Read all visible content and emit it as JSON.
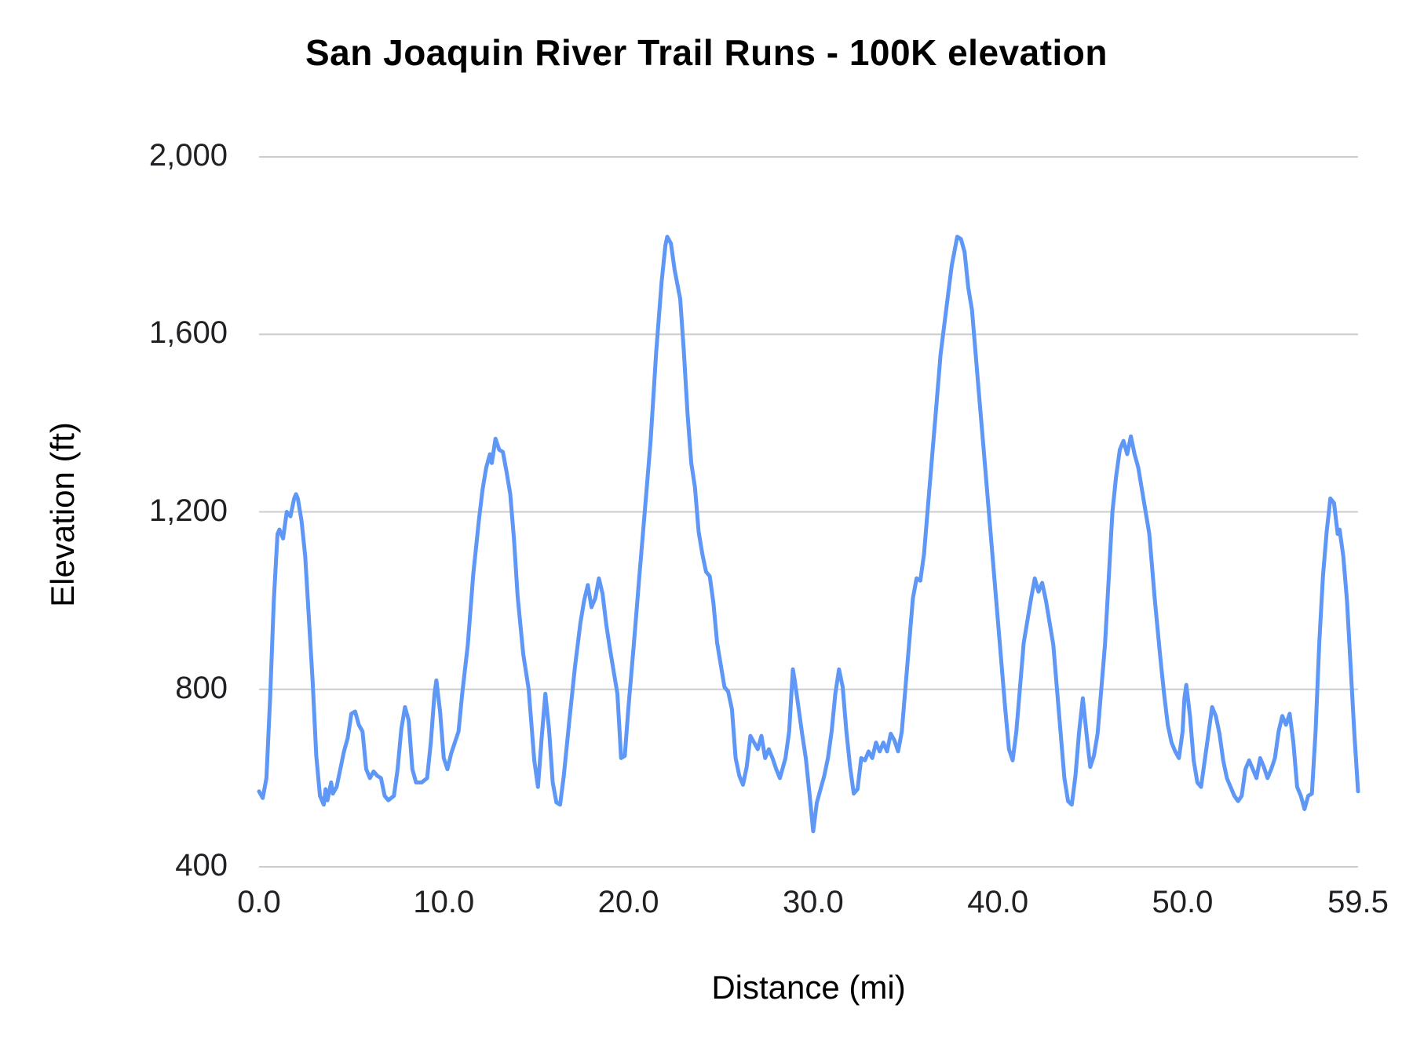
{
  "chart_data": {
    "type": "line",
    "title": "San Joaquin River Trail Runs - 100K elevation",
    "xlabel": "Distance (mi)",
    "ylabel": "Elevation (ft)",
    "xlim": [
      0,
      59.5
    ],
    "ylim": [
      400,
      2000
    ],
    "grid": true,
    "legend": "none",
    "line_color": "#5e97f6",
    "grid_color": "#cccccc",
    "x_ticks": [
      {
        "value": 0.0,
        "label": "0.0"
      },
      {
        "value": 10.0,
        "label": "10.0"
      },
      {
        "value": 20.0,
        "label": "20.0"
      },
      {
        "value": 30.0,
        "label": "30.0"
      },
      {
        "value": 40.0,
        "label": "40.0"
      },
      {
        "value": 50.0,
        "label": "50.0"
      },
      {
        "value": 59.5,
        "label": "59.5"
      }
    ],
    "y_ticks": [
      {
        "value": 400,
        "label": "400"
      },
      {
        "value": 800,
        "label": "800"
      },
      {
        "value": 1200,
        "label": "1,200"
      },
      {
        "value": 1600,
        "label": "1,600"
      },
      {
        "value": 2000,
        "label": "2,000"
      }
    ],
    "series_name": "Elevation (ft)",
    "points": [
      [
        0.0,
        570
      ],
      [
        0.2,
        555
      ],
      [
        0.4,
        600
      ],
      [
        0.6,
        780
      ],
      [
        0.8,
        1000
      ],
      [
        1.0,
        1150
      ],
      [
        1.1,
        1160
      ],
      [
        1.3,
        1140
      ],
      [
        1.5,
        1200
      ],
      [
        1.7,
        1190
      ],
      [
        1.9,
        1230
      ],
      [
        2.0,
        1240
      ],
      [
        2.1,
        1230
      ],
      [
        2.3,
        1180
      ],
      [
        2.5,
        1100
      ],
      [
        2.7,
        960
      ],
      [
        2.9,
        820
      ],
      [
        3.1,
        650
      ],
      [
        3.3,
        560
      ],
      [
        3.5,
        540
      ],
      [
        3.6,
        575
      ],
      [
        3.7,
        550
      ],
      [
        3.9,
        590
      ],
      [
        4.0,
        565
      ],
      [
        4.2,
        580
      ],
      [
        4.4,
        620
      ],
      [
        4.6,
        660
      ],
      [
        4.8,
        690
      ],
      [
        5.0,
        745
      ],
      [
        5.2,
        750
      ],
      [
        5.4,
        720
      ],
      [
        5.6,
        705
      ],
      [
        5.8,
        620
      ],
      [
        6.0,
        600
      ],
      [
        6.2,
        615
      ],
      [
        6.4,
        605
      ],
      [
        6.6,
        600
      ],
      [
        6.8,
        560
      ],
      [
        7.0,
        550
      ],
      [
        7.3,
        560
      ],
      [
        7.5,
        620
      ],
      [
        7.7,
        710
      ],
      [
        7.9,
        760
      ],
      [
        8.1,
        730
      ],
      [
        8.3,
        620
      ],
      [
        8.5,
        590
      ],
      [
        8.8,
        590
      ],
      [
        9.1,
        600
      ],
      [
        9.3,
        680
      ],
      [
        9.5,
        790
      ],
      [
        9.6,
        820
      ],
      [
        9.8,
        750
      ],
      [
        10.0,
        645
      ],
      [
        10.2,
        620
      ],
      [
        10.4,
        655
      ],
      [
        10.6,
        680
      ],
      [
        10.8,
        705
      ],
      [
        11.0,
        790
      ],
      [
        11.3,
        900
      ],
      [
        11.6,
        1060
      ],
      [
        11.9,
        1180
      ],
      [
        12.1,
        1250
      ],
      [
        12.3,
        1300
      ],
      [
        12.5,
        1330
      ],
      [
        12.6,
        1310
      ],
      [
        12.8,
        1365
      ],
      [
        13.0,
        1340
      ],
      [
        13.2,
        1335
      ],
      [
        13.4,
        1290
      ],
      [
        13.6,
        1240
      ],
      [
        13.8,
        1140
      ],
      [
        14.0,
        1010
      ],
      [
        14.3,
        880
      ],
      [
        14.6,
        800
      ],
      [
        14.9,
        640
      ],
      [
        15.1,
        580
      ],
      [
        15.3,
        690
      ],
      [
        15.5,
        790
      ],
      [
        15.7,
        710
      ],
      [
        15.9,
        590
      ],
      [
        16.1,
        545
      ],
      [
        16.3,
        540
      ],
      [
        16.5,
        605
      ],
      [
        16.8,
        730
      ],
      [
        17.1,
        850
      ],
      [
        17.4,
        950
      ],
      [
        17.6,
        1000
      ],
      [
        17.8,
        1035
      ],
      [
        18.0,
        985
      ],
      [
        18.2,
        1005
      ],
      [
        18.4,
        1050
      ],
      [
        18.6,
        1015
      ],
      [
        18.8,
        945
      ],
      [
        19.0,
        890
      ],
      [
        19.2,
        840
      ],
      [
        19.4,
        790
      ],
      [
        19.5,
        720
      ],
      [
        19.6,
        645
      ],
      [
        19.8,
        650
      ],
      [
        20.0,
        760
      ],
      [
        20.3,
        905
      ],
      [
        20.6,
        1060
      ],
      [
        20.9,
        1210
      ],
      [
        21.2,
        1360
      ],
      [
        21.5,
        1560
      ],
      [
        21.8,
        1720
      ],
      [
        22.0,
        1800
      ],
      [
        22.1,
        1820
      ],
      [
        22.3,
        1805
      ],
      [
        22.5,
        1745
      ],
      [
        22.8,
        1680
      ],
      [
        23.0,
        1560
      ],
      [
        23.2,
        1420
      ],
      [
        23.4,
        1310
      ],
      [
        23.6,
        1255
      ],
      [
        23.8,
        1155
      ],
      [
        24.0,
        1105
      ],
      [
        24.2,
        1065
      ],
      [
        24.4,
        1055
      ],
      [
        24.6,
        995
      ],
      [
        24.8,
        905
      ],
      [
        25.0,
        855
      ],
      [
        25.2,
        805
      ],
      [
        25.4,
        795
      ],
      [
        25.6,
        755
      ],
      [
        25.8,
        645
      ],
      [
        26.0,
        605
      ],
      [
        26.2,
        585
      ],
      [
        26.4,
        625
      ],
      [
        26.6,
        695
      ],
      [
        26.8,
        680
      ],
      [
        27.0,
        665
      ],
      [
        27.2,
        695
      ],
      [
        27.4,
        645
      ],
      [
        27.6,
        665
      ],
      [
        27.8,
        645
      ],
      [
        28.0,
        620
      ],
      [
        28.2,
        600
      ],
      [
        28.5,
        645
      ],
      [
        28.7,
        705
      ],
      [
        28.9,
        845
      ],
      [
        29.0,
        820
      ],
      [
        29.2,
        760
      ],
      [
        29.4,
        700
      ],
      [
        29.6,
        645
      ],
      [
        29.8,
        565
      ],
      [
        30.0,
        480
      ],
      [
        30.2,
        545
      ],
      [
        30.4,
        575
      ],
      [
        30.6,
        605
      ],
      [
        30.8,
        645
      ],
      [
        31.0,
        705
      ],
      [
        31.2,
        790
      ],
      [
        31.4,
        845
      ],
      [
        31.6,
        805
      ],
      [
        31.8,
        705
      ],
      [
        32.0,
        625
      ],
      [
        32.2,
        565
      ],
      [
        32.4,
        575
      ],
      [
        32.6,
        645
      ],
      [
        32.8,
        640
      ],
      [
        33.0,
        660
      ],
      [
        33.2,
        645
      ],
      [
        33.4,
        680
      ],
      [
        33.6,
        660
      ],
      [
        33.8,
        680
      ],
      [
        34.0,
        660
      ],
      [
        34.2,
        700
      ],
      [
        34.4,
        685
      ],
      [
        34.6,
        660
      ],
      [
        34.8,
        705
      ],
      [
        35.0,
        805
      ],
      [
        35.2,
        905
      ],
      [
        35.4,
        1005
      ],
      [
        35.6,
        1050
      ],
      [
        35.8,
        1045
      ],
      [
        36.0,
        1105
      ],
      [
        36.3,
        1255
      ],
      [
        36.6,
        1405
      ],
      [
        36.9,
        1555
      ],
      [
        37.2,
        1655
      ],
      [
        37.5,
        1755
      ],
      [
        37.8,
        1820
      ],
      [
        38.0,
        1815
      ],
      [
        38.2,
        1785
      ],
      [
        38.4,
        1705
      ],
      [
        38.6,
        1655
      ],
      [
        38.8,
        1555
      ],
      [
        39.0,
        1455
      ],
      [
        39.2,
        1355
      ],
      [
        39.4,
        1255
      ],
      [
        39.6,
        1155
      ],
      [
        39.8,
        1055
      ],
      [
        40.0,
        955
      ],
      [
        40.2,
        855
      ],
      [
        40.4,
        755
      ],
      [
        40.6,
        665
      ],
      [
        40.8,
        640
      ],
      [
        41.0,
        705
      ],
      [
        41.2,
        805
      ],
      [
        41.4,
        905
      ],
      [
        41.6,
        955
      ],
      [
        41.8,
        1005
      ],
      [
        42.0,
        1050
      ],
      [
        42.2,
        1020
      ],
      [
        42.4,
        1040
      ],
      [
        42.6,
        1000
      ],
      [
        42.8,
        950
      ],
      [
        43.0,
        900
      ],
      [
        43.2,
        800
      ],
      [
        43.4,
        700
      ],
      [
        43.6,
        600
      ],
      [
        43.8,
        548
      ],
      [
        44.0,
        540
      ],
      [
        44.2,
        605
      ],
      [
        44.4,
        705
      ],
      [
        44.6,
        780
      ],
      [
        44.8,
        700
      ],
      [
        45.0,
        625
      ],
      [
        45.2,
        650
      ],
      [
        45.4,
        700
      ],
      [
        45.6,
        800
      ],
      [
        45.8,
        900
      ],
      [
        46.0,
        1050
      ],
      [
        46.2,
        1200
      ],
      [
        46.4,
        1280
      ],
      [
        46.6,
        1340
      ],
      [
        46.8,
        1360
      ],
      [
        47.0,
        1330
      ],
      [
        47.2,
        1370
      ],
      [
        47.4,
        1330
      ],
      [
        47.6,
        1300
      ],
      [
        47.8,
        1250
      ],
      [
        48.0,
        1200
      ],
      [
        48.2,
        1150
      ],
      [
        48.5,
        1000
      ],
      [
        48.8,
        870
      ],
      [
        49.0,
        790
      ],
      [
        49.2,
        720
      ],
      [
        49.4,
        680
      ],
      [
        49.6,
        660
      ],
      [
        49.8,
        645
      ],
      [
        50.0,
        705
      ],
      [
        50.1,
        780
      ],
      [
        50.2,
        810
      ],
      [
        50.4,
        740
      ],
      [
        50.6,
        640
      ],
      [
        50.8,
        590
      ],
      [
        51.0,
        580
      ],
      [
        51.2,
        640
      ],
      [
        51.4,
        700
      ],
      [
        51.6,
        760
      ],
      [
        51.8,
        740
      ],
      [
        52.0,
        700
      ],
      [
        52.2,
        640
      ],
      [
        52.4,
        600
      ],
      [
        52.6,
        580
      ],
      [
        52.8,
        560
      ],
      [
        53.0,
        548
      ],
      [
        53.2,
        560
      ],
      [
        53.4,
        620
      ],
      [
        53.6,
        640
      ],
      [
        53.8,
        620
      ],
      [
        54.0,
        600
      ],
      [
        54.2,
        645
      ],
      [
        54.4,
        625
      ],
      [
        54.6,
        600
      ],
      [
        54.8,
        620
      ],
      [
        55.0,
        645
      ],
      [
        55.2,
        705
      ],
      [
        55.4,
        740
      ],
      [
        55.6,
        720
      ],
      [
        55.8,
        745
      ],
      [
        56.0,
        680
      ],
      [
        56.2,
        580
      ],
      [
        56.4,
        560
      ],
      [
        56.6,
        530
      ],
      [
        56.8,
        560
      ],
      [
        57.0,
        565
      ],
      [
        57.2,
        705
      ],
      [
        57.4,
        905
      ],
      [
        57.6,
        1055
      ],
      [
        57.8,
        1155
      ],
      [
        58.0,
        1230
      ],
      [
        58.2,
        1220
      ],
      [
        58.4,
        1150
      ],
      [
        58.5,
        1160
      ],
      [
        58.7,
        1100
      ],
      [
        58.9,
        1000
      ],
      [
        59.1,
        850
      ],
      [
        59.3,
        700
      ],
      [
        59.5,
        570
      ]
    ]
  }
}
